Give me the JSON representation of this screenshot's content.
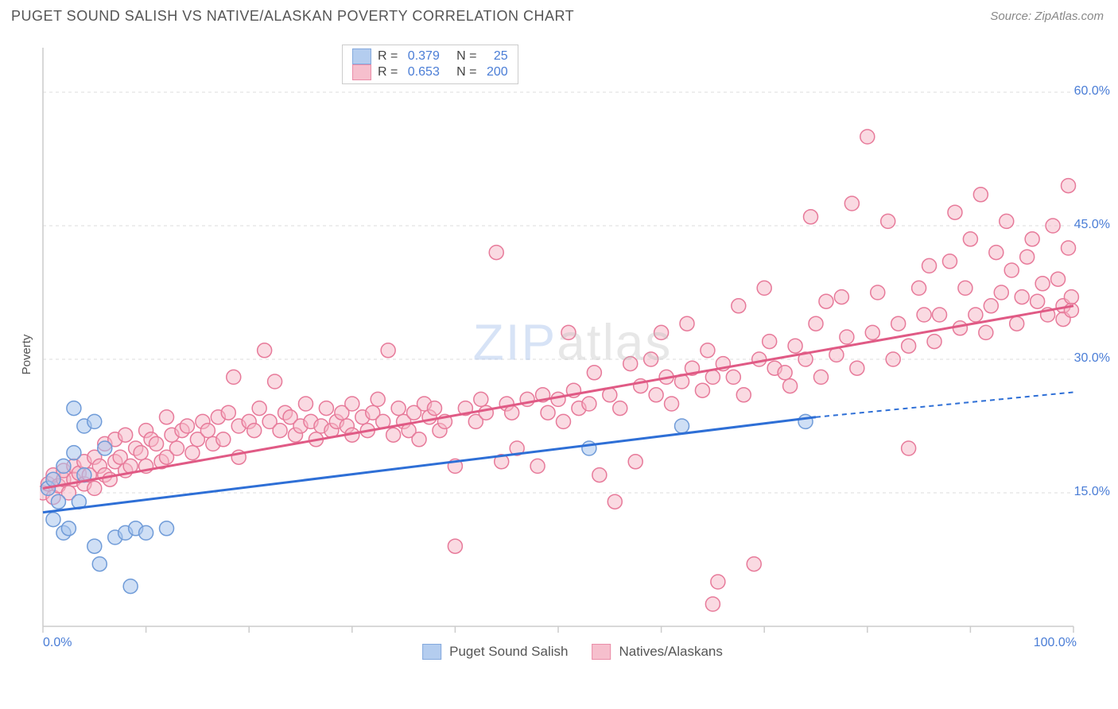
{
  "header": {
    "title": "PUGET SOUND SALISH VS NATIVE/ALASKAN POVERTY CORRELATION CHART",
    "source_prefix": "Source: ",
    "source_name": "ZipAtlas.com"
  },
  "chart": {
    "type": "scatter",
    "ylabel": "Poverty",
    "xlim": [
      0,
      100
    ],
    "ylim": [
      0,
      65
    ],
    "x_ticks": [
      0,
      10,
      20,
      30,
      40,
      50,
      60,
      70,
      80,
      90,
      100
    ],
    "x_tick_labels": {
      "0": "0.0%",
      "100": "100.0%"
    },
    "y_gridlines": [
      15,
      30,
      45,
      60
    ],
    "y_tick_labels": {
      "15": "15.0%",
      "30": "30.0%",
      "45": "45.0%",
      "60": "60.0%"
    },
    "background_color": "#ffffff",
    "grid_color": "#dddddd",
    "grid_dash": "4,4",
    "axis_color": "#cccccc",
    "tick_label_color": "#4a7dd6",
    "marker_radius": 9,
    "marker_stroke_width": 1.5,
    "trend_line_width": 3,
    "series": {
      "blue": {
        "label": "Puget Sound Salish",
        "fill_color": "#a8c5ed",
        "stroke_color": "#6f9bd8",
        "fill_opacity": 0.55,
        "line_color": "#2e6fd6",
        "trend": {
          "x1": 0,
          "y1": 12.8,
          "x2": 75,
          "y2": 23.5,
          "extrap_x2": 100,
          "extrap_y2": 26.3
        },
        "R": "0.379",
        "N": "25",
        "points": [
          [
            0.5,
            15.5
          ],
          [
            1,
            12
          ],
          [
            1,
            16.5
          ],
          [
            1.5,
            14
          ],
          [
            2,
            10.5
          ],
          [
            2,
            18
          ],
          [
            2.5,
            11
          ],
          [
            3,
            19.5
          ],
          [
            3,
            24.5
          ],
          [
            3.5,
            14
          ],
          [
            4,
            22.5
          ],
          [
            4,
            17
          ],
          [
            5,
            23
          ],
          [
            5,
            9
          ],
          [
            5.5,
            7
          ],
          [
            6,
            20
          ],
          [
            7,
            10
          ],
          [
            8,
            10.5
          ],
          [
            8.5,
            4.5
          ],
          [
            9,
            11
          ],
          [
            10,
            10.5
          ],
          [
            12,
            11
          ],
          [
            53,
            20
          ],
          [
            62,
            22.5
          ],
          [
            74,
            23
          ]
        ]
      },
      "pink": {
        "label": "Natives/Alaskans",
        "fill_color": "#f5b5c5",
        "stroke_color": "#e77a9a",
        "fill_opacity": 0.5,
        "line_color": "#e05a85",
        "trend": {
          "x1": 0,
          "y1": 15.5,
          "x2": 100,
          "y2": 36
        },
        "R": "0.653",
        "N": "200",
        "points": [
          [
            0,
            15
          ],
          [
            0.5,
            16
          ],
          [
            1,
            17
          ],
          [
            1,
            14.5
          ],
          [
            1.5,
            15.8
          ],
          [
            2,
            16.5
          ],
          [
            2,
            17.5
          ],
          [
            2.5,
            15
          ],
          [
            3,
            18
          ],
          [
            3,
            16.5
          ],
          [
            3.5,
            17.2
          ],
          [
            4,
            18.5
          ],
          [
            4,
            16
          ],
          [
            4.5,
            17
          ],
          [
            5,
            19
          ],
          [
            5,
            15.5
          ],
          [
            5.5,
            18
          ],
          [
            6,
            20.5
          ],
          [
            6,
            17
          ],
          [
            6.5,
            16.5
          ],
          [
            7,
            21
          ],
          [
            7,
            18.5
          ],
          [
            7.5,
            19
          ],
          [
            8,
            21.5
          ],
          [
            8,
            17.5
          ],
          [
            8.5,
            18
          ],
          [
            9,
            20
          ],
          [
            9.5,
            19.5
          ],
          [
            10,
            22
          ],
          [
            10,
            18
          ],
          [
            10.5,
            21
          ],
          [
            11,
            20.5
          ],
          [
            11.5,
            18.5
          ],
          [
            12,
            23.5
          ],
          [
            12,
            19
          ],
          [
            12.5,
            21.5
          ],
          [
            13,
            20
          ],
          [
            13.5,
            22
          ],
          [
            14,
            22.5
          ],
          [
            14.5,
            19.5
          ],
          [
            15,
            21
          ],
          [
            15.5,
            23
          ],
          [
            16,
            22
          ],
          [
            16.5,
            20.5
          ],
          [
            17,
            23.5
          ],
          [
            17.5,
            21
          ],
          [
            18,
            24
          ],
          [
            18.5,
            28
          ],
          [
            19,
            22.5
          ],
          [
            19,
            19
          ],
          [
            20,
            23
          ],
          [
            20.5,
            22
          ],
          [
            21,
            24.5
          ],
          [
            21.5,
            31
          ],
          [
            22,
            23
          ],
          [
            22.5,
            27.5
          ],
          [
            23,
            22
          ],
          [
            23.5,
            24
          ],
          [
            24,
            23.5
          ],
          [
            24.5,
            21.5
          ],
          [
            25,
            22.5
          ],
          [
            25.5,
            25
          ],
          [
            26,
            23
          ],
          [
            26.5,
            21
          ],
          [
            27,
            22.5
          ],
          [
            27.5,
            24.5
          ],
          [
            28,
            22
          ],
          [
            28.5,
            23
          ],
          [
            29,
            24
          ],
          [
            29.5,
            22.5
          ],
          [
            30,
            21.5
          ],
          [
            30,
            25
          ],
          [
            31,
            23.5
          ],
          [
            31.5,
            22
          ],
          [
            32,
            24
          ],
          [
            32.5,
            25.5
          ],
          [
            33,
            23
          ],
          [
            33.5,
            31
          ],
          [
            34,
            21.5
          ],
          [
            34.5,
            24.5
          ],
          [
            35,
            23
          ],
          [
            35.5,
            22
          ],
          [
            36,
            24
          ],
          [
            36.5,
            21
          ],
          [
            37,
            25
          ],
          [
            37.5,
            23.5
          ],
          [
            38,
            24.5
          ],
          [
            38.5,
            22
          ],
          [
            39,
            23
          ],
          [
            40,
            18
          ],
          [
            40,
            9
          ],
          [
            41,
            24.5
          ],
          [
            42,
            23
          ],
          [
            42.5,
            25.5
          ],
          [
            43,
            24
          ],
          [
            44,
            42
          ],
          [
            44.5,
            18.5
          ],
          [
            45,
            25
          ],
          [
            45.5,
            24
          ],
          [
            46,
            20
          ],
          [
            47,
            25.5
          ],
          [
            48,
            18
          ],
          [
            48.5,
            26
          ],
          [
            49,
            24
          ],
          [
            50,
            25.5
          ],
          [
            50.5,
            23
          ],
          [
            51,
            33
          ],
          [
            51.5,
            26.5
          ],
          [
            52,
            24.5
          ],
          [
            53,
            25
          ],
          [
            53.5,
            28.5
          ],
          [
            54,
            17
          ],
          [
            55,
            26
          ],
          [
            55.5,
            14
          ],
          [
            56,
            24.5
          ],
          [
            57,
            29.5
          ],
          [
            57.5,
            18.5
          ],
          [
            58,
            27
          ],
          [
            59,
            30
          ],
          [
            59.5,
            26
          ],
          [
            60,
            33
          ],
          [
            60.5,
            28
          ],
          [
            61,
            25
          ],
          [
            62,
            27.5
          ],
          [
            62.5,
            34
          ],
          [
            63,
            29
          ],
          [
            64,
            26.5
          ],
          [
            64.5,
            31
          ],
          [
            65,
            28
          ],
          [
            65.5,
            5
          ],
          [
            65,
            2.5
          ],
          [
            66,
            29.5
          ],
          [
            67,
            28
          ],
          [
            67.5,
            36
          ],
          [
            68,
            26
          ],
          [
            69,
            7
          ],
          [
            69.5,
            30
          ],
          [
            70,
            38
          ],
          [
            70.5,
            32
          ],
          [
            71,
            29
          ],
          [
            72,
            28.5
          ],
          [
            72.5,
            27
          ],
          [
            73,
            31.5
          ],
          [
            74,
            30
          ],
          [
            74.5,
            46
          ],
          [
            75,
            34
          ],
          [
            75.5,
            28
          ],
          [
            76,
            36.5
          ],
          [
            77,
            30.5
          ],
          [
            77.5,
            37
          ],
          [
            78,
            32.5
          ],
          [
            78.5,
            47.5
          ],
          [
            79,
            29
          ],
          [
            80,
            55
          ],
          [
            80.5,
            33
          ],
          [
            81,
            37.5
          ],
          [
            82,
            45.5
          ],
          [
            82.5,
            30
          ],
          [
            83,
            34
          ],
          [
            84,
            20
          ],
          [
            84,
            31.5
          ],
          [
            85,
            38
          ],
          [
            85.5,
            35
          ],
          [
            86,
            40.5
          ],
          [
            86.5,
            32
          ],
          [
            87,
            35
          ],
          [
            88,
            41
          ],
          [
            88.5,
            46.5
          ],
          [
            89,
            33.5
          ],
          [
            89.5,
            38
          ],
          [
            90,
            43.5
          ],
          [
            90.5,
            35
          ],
          [
            91,
            48.5
          ],
          [
            91.5,
            33
          ],
          [
            92,
            36
          ],
          [
            92.5,
            42
          ],
          [
            93,
            37.5
          ],
          [
            93.5,
            45.5
          ],
          [
            94,
            40
          ],
          [
            94.5,
            34
          ],
          [
            95,
            37
          ],
          [
            95.5,
            41.5
          ],
          [
            96,
            43.5
          ],
          [
            96.5,
            36.5
          ],
          [
            97,
            38.5
          ],
          [
            97.5,
            35
          ],
          [
            98,
            45
          ],
          [
            98.5,
            39
          ],
          [
            99,
            36
          ],
          [
            99,
            34.5
          ],
          [
            99.5,
            42.5
          ],
          [
            99.5,
            49.5
          ],
          [
            99.8,
            35.5
          ],
          [
            99.8,
            37
          ]
        ]
      }
    },
    "watermark": {
      "zip": "ZIP",
      "atlas": "atlas"
    }
  },
  "legend_box": {
    "rows": [
      {
        "swatch": "blue",
        "r_label": "R = ",
        "r_val": "0.379",
        "n_label": "   N =   ",
        "n_val": "25"
      },
      {
        "swatch": "pink",
        "r_label": "R = ",
        "r_val": "0.653",
        "n_label": "   N = ",
        "n_val": "200"
      }
    ]
  },
  "bottom_legend": [
    {
      "swatch": "blue",
      "label": "Puget Sound Salish"
    },
    {
      "swatch": "pink",
      "label": "Natives/Alaskans"
    }
  ]
}
